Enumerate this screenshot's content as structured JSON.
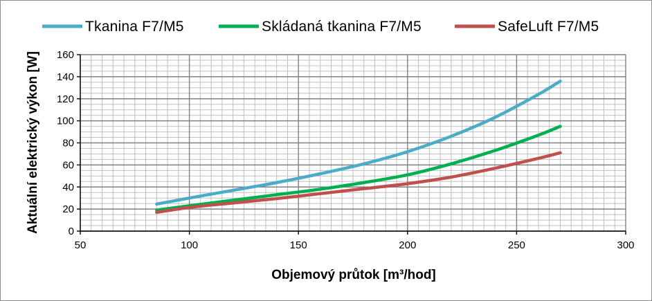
{
  "chart_data": {
    "type": "line",
    "title": "",
    "xlabel": "Objemový průtok [m³/hod]",
    "ylabel": "Aktuální elektrický výkon [W]",
    "xlim": [
      50,
      300
    ],
    "ylim": [
      0,
      160
    ],
    "x_ticks": [
      50,
      100,
      150,
      200,
      250,
      300
    ],
    "y_ticks": [
      0,
      20,
      40,
      60,
      80,
      100,
      120,
      140,
      160
    ],
    "grid": true,
    "minor_grid": true,
    "legend_position": "top",
    "x": [
      85,
      100,
      120,
      140,
      160,
      180,
      200,
      220,
      240,
      260,
      270
    ],
    "series": [
      {
        "name": "Tkanina F7/M5",
        "color": "#4bacc6",
        "values": [
          24.5,
          30,
          37,
          44,
          52,
          61,
          72,
          86,
          103,
          124,
          136
        ]
      },
      {
        "name": "Skládaná tkanina F7/M5",
        "color": "#00b050",
        "values": [
          19,
          23,
          28,
          33,
          38,
          44,
          51,
          61,
          73,
          87,
          95
        ]
      },
      {
        "name": "SafeLuft F7/M5",
        "color": "#c0504d",
        "values": [
          17,
          21.5,
          25.5,
          29.5,
          34,
          38.5,
          43,
          49,
          57,
          66,
          71
        ]
      }
    ]
  }
}
